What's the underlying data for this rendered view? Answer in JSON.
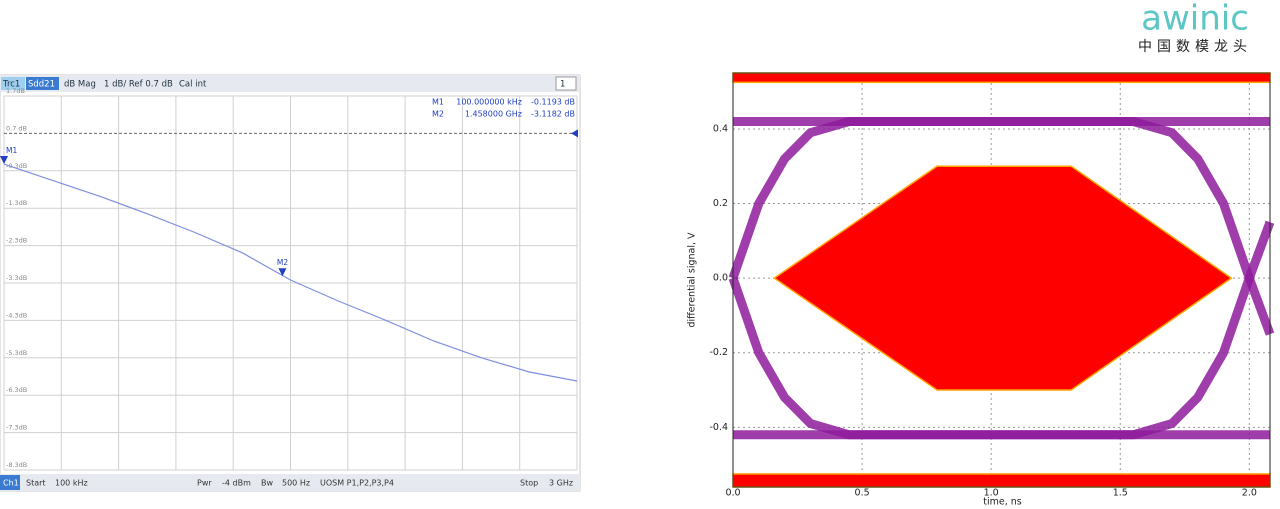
{
  "logo": {
    "brand": "awinic",
    "tagline": "中国数模龙头"
  },
  "chart_data": [
    {
      "type": "line",
      "header": [
        "Trc1",
        "Sdd21",
        "dB Mag",
        "1 dB/ Ref 0.7 dB",
        "Cal int"
      ],
      "channel_menu": "1",
      "footer": [
        "Ch1",
        "Start",
        "100 kHz",
        "Pwr",
        "-4 dBm",
        "Bw",
        "500 Hz",
        "UOSM P1,P2,P3,P4",
        "Stop",
        "3 GHz"
      ],
      "xlim": [
        0,
        3
      ],
      "ylim": [
        -8.3,
        1.7
      ],
      "yticks": [
        {
          "value": 1.7,
          "label": "1.7dB"
        },
        {
          "value": 0.7,
          "label": "0.7 dB"
        },
        {
          "value": -0.3,
          "label": "-0.3dB"
        },
        {
          "value": -1.3,
          "label": "-1.3dB"
        },
        {
          "value": -2.3,
          "label": "-2.3dB"
        },
        {
          "value": -3.3,
          "label": "-3.3dB"
        },
        {
          "value": -4.3,
          "label": "-4.3dB"
        },
        {
          "value": -5.3,
          "label": "-5.3dB"
        },
        {
          "value": -6.3,
          "label": "-6.3dB"
        },
        {
          "value": -7.3,
          "label": "-7.3dB"
        },
        {
          "value": -8.3,
          "label": "-8.3dB"
        }
      ],
      "grid": true,
      "series": [
        {
          "color": "#7f8fe0",
          "x": [
            0,
            0.25,
            0.5,
            0.75,
            1.0,
            1.25,
            1.5,
            1.75,
            2.0,
            2.25,
            2.5,
            2.75,
            3.0
          ],
          "y": [
            -0.12,
            -0.55,
            -0.98,
            -1.45,
            -1.95,
            -2.5,
            -3.22,
            -3.78,
            -4.3,
            -4.85,
            -5.3,
            -5.68,
            -5.92
          ]
        }
      ],
      "markers": [
        {
          "label": "M1",
          "x": 0.0001,
          "x_label": "100.000000 kHz",
          "y": -0.1193,
          "y_label": "-0.1193 dB"
        },
        {
          "label": "M2",
          "x": 1.458,
          "x_label": "1.458000 GHz",
          "y": -3.1182,
          "y_label": "-3.1182 dB"
        }
      ]
    },
    {
      "type": "eye",
      "xlabel": "time, ns",
      "ylabel": "differential signal, V",
      "xlim": [
        0,
        2.08
      ],
      "ylim": [
        -0.56,
        0.55
      ],
      "xticks": [
        {
          "value": 0,
          "label": "0.0"
        },
        0.5,
        {
          "value": 1,
          "label": "1.0"
        },
        1.5,
        {
          "value": 2,
          "label": "2.0"
        }
      ],
      "yticks": [
        -0.4,
        -0.2,
        {
          "value": 0,
          "label": "0.0"
        },
        0.2,
        0.4
      ],
      "grid": true,
      "mask": {
        "color": "#ff0000",
        "upper": 0.525,
        "lower": -0.525,
        "x": [
          0.16,
          0.79,
          1.31,
          1.93,
          1.31,
          0.79
        ],
        "y": [
          0,
          0.3,
          0.3,
          0,
          -0.3,
          -0.3
        ]
      },
      "series": [
        {
          "color": "#8e1b9c",
          "x": [
            0,
            2.08
          ],
          "y": [
            0.42,
            0.42
          ]
        },
        {
          "color": "#8e1b9c",
          "x": [
            0,
            2.08
          ],
          "y": [
            -0.42,
            -0.42
          ]
        },
        {
          "color": "#8e1b9c",
          "x": [
            0,
            0.1,
            0.2,
            0.3,
            0.45,
            1.55,
            1.7,
            1.8,
            1.9,
            2.0,
            2.08
          ],
          "y": [
            0,
            0.2,
            0.32,
            0.39,
            0.42,
            0.42,
            0.39,
            0.32,
            0.2,
            0,
            -0.15
          ]
        },
        {
          "color": "#8e1b9c",
          "x": [
            0,
            0.1,
            0.2,
            0.3,
            0.45,
            1.55,
            1.7,
            1.8,
            1.9,
            2.0,
            2.08
          ],
          "y": [
            0,
            -0.2,
            -0.32,
            -0.39,
            -0.42,
            -0.42,
            -0.39,
            -0.32,
            -0.2,
            0,
            0.15
          ]
        }
      ]
    }
  ]
}
